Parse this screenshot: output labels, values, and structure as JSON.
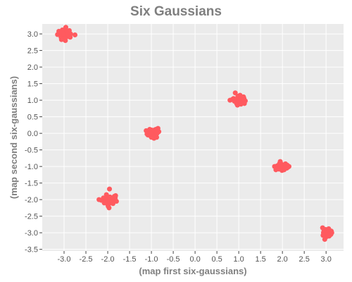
{
  "chart_data": {
    "type": "scatter",
    "title": "Six Gaussians",
    "xlabel": "(map first six-gaussians)",
    "ylabel": "(map second six-gaussians)",
    "xlim": [
      -3.5,
      3.4
    ],
    "ylim": [
      -3.55,
      3.3
    ],
    "xticks": [
      -3.0,
      -2.5,
      -2.0,
      -1.5,
      -1.0,
      -0.5,
      0.0,
      0.5,
      1.0,
      1.5,
      2.0,
      2.5,
      3.0
    ],
    "yticks": [
      -3.5,
      -3.0,
      -2.5,
      -2.0,
      -1.5,
      -1.0,
      -0.5,
      0.0,
      0.5,
      1.0,
      1.5,
      2.0,
      2.5,
      3.0
    ],
    "xtick_labels": [
      "-3.0",
      "-2.5",
      "-2.0",
      "-1.5",
      "-1.0",
      "-0.5",
      "0.0",
      "0.5",
      "1.0",
      "1.5",
      "2.0",
      "2.5",
      "3.0"
    ],
    "ytick_labels": [
      "-3.5",
      "-3.0",
      "-2.5",
      "-2.0",
      "-1.5",
      "-1.0",
      "-0.5",
      "0.0",
      "0.5",
      "1.0",
      "1.5",
      "2.0",
      "2.5",
      "3.0"
    ],
    "grid": true,
    "legend": "none",
    "colors": {
      "point": "#ff5a5f",
      "plot_background": "#ebebeb",
      "grid": "#ffffff",
      "title": "#7f7f7f",
      "tick_text": "#555555"
    },
    "series": [
      {
        "points": [
          [
            -3.12,
            3.08
          ],
          [
            -3.05,
            3.02
          ],
          [
            -2.98,
            3.14
          ],
          [
            -2.95,
            3.05
          ],
          [
            -3.0,
            2.95
          ],
          [
            -2.93,
            2.98
          ],
          [
            -3.07,
            2.9
          ],
          [
            -2.88,
            3.1
          ],
          [
            -2.85,
            3.0
          ],
          [
            -3.02,
            2.85
          ],
          [
            -2.97,
            2.8
          ],
          [
            -3.1,
            3.0
          ],
          [
            -2.92,
            2.92
          ],
          [
            -3.04,
            3.12
          ],
          [
            -2.9,
            3.05
          ],
          [
            -2.96,
            3.2
          ],
          [
            -3.15,
            2.98
          ],
          [
            -2.99,
            2.88
          ],
          [
            -2.75,
            2.97
          ],
          [
            -3.06,
            2.83
          ],
          [
            -2.94,
            3.1
          ],
          [
            -3.08,
            3.06
          ],
          [
            -2.86,
            2.9
          ],
          [
            -3.0,
            3.0
          ],
          [
            -2.91,
            2.99
          ],
          [
            -2.1,
            -1.95
          ],
          [
            -2.05,
            -2.05
          ],
          [
            -2.02,
            -1.9
          ],
          [
            -1.98,
            -2.0
          ],
          [
            -1.95,
            -1.92
          ],
          [
            -1.92,
            -2.1
          ],
          [
            -1.9,
            -1.98
          ],
          [
            -1.85,
            -1.9
          ],
          [
            -2.15,
            -2.02
          ],
          [
            -2.0,
            -2.15
          ],
          [
            -1.97,
            -2.25
          ],
          [
            -1.8,
            -2.05
          ],
          [
            -1.83,
            -1.95
          ],
          [
            -2.08,
            -2.1
          ],
          [
            -1.96,
            -1.68
          ],
          [
            -2.03,
            -1.85
          ],
          [
            -1.88,
            -2.12
          ],
          [
            -2.2,
            -2.0
          ],
          [
            -1.99,
            -2.2
          ],
          [
            -1.94,
            -2.02
          ],
          [
            -1.82,
            -1.88
          ],
          [
            -2.06,
            -1.96
          ],
          [
            -1.9,
            -2.05
          ],
          [
            -2.01,
            -2.08
          ],
          [
            -1.86,
            -2.0
          ],
          [
            -1.12,
            0.08
          ],
          [
            -1.05,
            0.02
          ],
          [
            -1.0,
            0.1
          ],
          [
            -0.95,
            0.05
          ],
          [
            -0.9,
            0.12
          ],
          [
            -0.85,
            0.15
          ],
          [
            -1.08,
            -0.05
          ],
          [
            -1.02,
            -0.08
          ],
          [
            -0.98,
            -0.02
          ],
          [
            -0.92,
            -0.1
          ],
          [
            -0.88,
            -0.12
          ],
          [
            -0.83,
            0.05
          ],
          [
            -1.06,
            0.0
          ],
          [
            -0.96,
            0.08
          ],
          [
            -0.91,
            -0.05
          ],
          [
            -1.0,
            -0.12
          ],
          [
            -0.87,
            0.0
          ],
          [
            -1.04,
            0.12
          ],
          [
            -0.94,
            -0.15
          ],
          [
            -0.99,
            0.03
          ],
          [
            -1.1,
            -0.02
          ],
          [
            -0.93,
            0.1
          ],
          [
            -1.01,
            -0.04
          ],
          [
            -0.89,
            0.07
          ],
          [
            -0.97,
            -0.08
          ],
          [
            0.8,
            1.0
          ],
          [
            0.88,
            1.05
          ],
          [
            0.92,
            1.22
          ],
          [
            0.95,
            0.9
          ],
          [
            0.98,
            1.12
          ],
          [
            1.0,
            0.95
          ],
          [
            1.02,
            1.05
          ],
          [
            1.05,
            0.88
          ],
          [
            1.08,
            1.0
          ],
          [
            1.1,
            0.95
          ],
          [
            1.12,
            1.05
          ],
          [
            1.15,
            0.98
          ],
          [
            0.97,
            0.85
          ],
          [
            1.03,
            1.15
          ],
          [
            0.9,
            0.97
          ],
          [
            1.06,
            1.08
          ],
          [
            0.94,
            1.02
          ],
          [
            1.13,
            0.9
          ],
          [
            1.0,
            1.08
          ],
          [
            0.96,
            0.93
          ],
          [
            1.09,
            1.03
          ],
          [
            0.85,
            1.02
          ],
          [
            1.04,
            0.92
          ],
          [
            0.99,
            1.0
          ],
          [
            1.11,
            1.1
          ],
          [
            1.82,
            -1.0
          ],
          [
            1.85,
            -1.1
          ],
          [
            1.88,
            -0.98
          ],
          [
            1.9,
            -1.05
          ],
          [
            1.93,
            -0.92
          ],
          [
            1.95,
            -0.85
          ],
          [
            1.98,
            -1.02
          ],
          [
            2.0,
            -0.95
          ],
          [
            2.02,
            -1.08
          ],
          [
            2.05,
            -1.0
          ],
          [
            2.08,
            -0.97
          ],
          [
            2.1,
            -1.05
          ],
          [
            2.13,
            -1.02
          ],
          [
            2.15,
            -1.0
          ],
          [
            1.96,
            -0.9
          ],
          [
            2.04,
            -1.1
          ],
          [
            1.92,
            -1.08
          ],
          [
            2.07,
            -0.92
          ],
          [
            1.99,
            -1.12
          ],
          [
            1.87,
            -1.05
          ],
          [
            2.11,
            -0.96
          ],
          [
            1.94,
            -0.98
          ],
          [
            2.01,
            -1.04
          ],
          [
            2.06,
            -1.06
          ],
          [
            1.97,
            -1.0
          ],
          [
            2.92,
            -2.85
          ],
          [
            2.95,
            -2.95
          ],
          [
            2.98,
            -3.05
          ],
          [
            3.0,
            -3.0
          ],
          [
            3.02,
            -2.92
          ],
          [
            3.05,
            -2.98
          ],
          [
            3.08,
            -3.08
          ],
          [
            3.1,
            -3.02
          ],
          [
            3.12,
            -2.95
          ],
          [
            2.97,
            -3.2
          ],
          [
            3.03,
            -3.1
          ],
          [
            3.06,
            -2.88
          ],
          [
            2.99,
            -2.9
          ],
          [
            3.11,
            -3.05
          ],
          [
            2.94,
            -3.0
          ],
          [
            3.01,
            -3.12
          ],
          [
            3.09,
            -2.96
          ],
          [
            3.04,
            -3.03
          ],
          [
            2.96,
            -2.97
          ],
          [
            3.07,
            -3.1
          ],
          [
            3.13,
            -3.0
          ],
          [
            2.93,
            -3.08
          ],
          [
            3.0,
            -2.94
          ],
          [
            3.05,
            -3.06
          ],
          [
            2.98,
            -2.99
          ]
        ]
      }
    ]
  }
}
